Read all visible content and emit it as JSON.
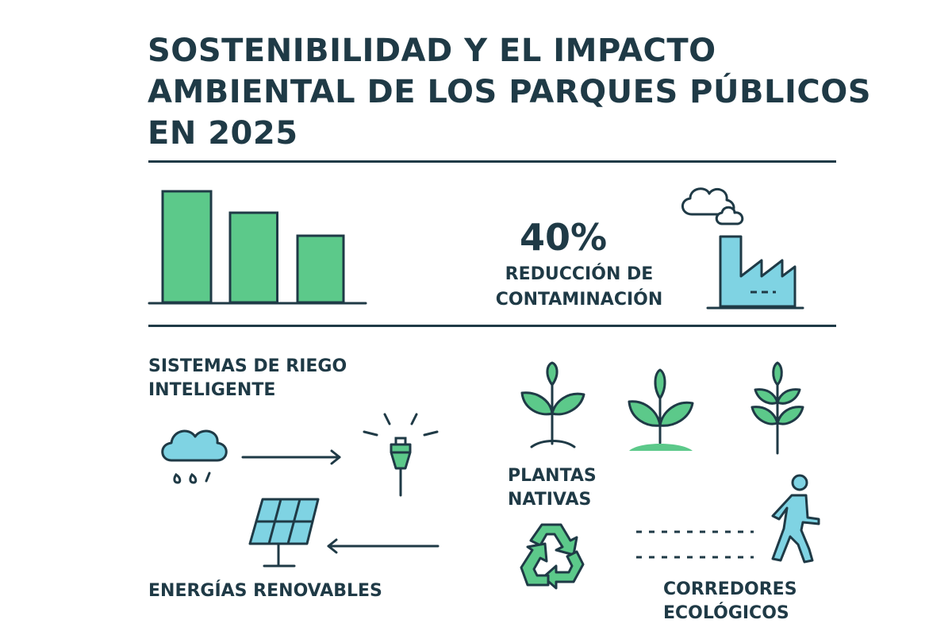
{
  "title": {
    "lines": [
      "SOSTENIBILIDAD Y EL IMPACTO",
      "AMBIENTAL DE LOS PARQUES PÚBLICOS",
      "EN 2025"
    ]
  },
  "colors": {
    "ink": "#1f3a46",
    "green": "#5cc98a",
    "blue": "#7fd3e3"
  },
  "chart_data": {
    "type": "bar",
    "categories": [
      "",
      "",
      ""
    ],
    "values": [
      140,
      113,
      84
    ],
    "ylim": [
      0,
      150
    ],
    "grid": false
  },
  "stat": {
    "value": "40%",
    "label_lines": [
      "REDUCCIÓN DE",
      "CONTAMINACIÓN"
    ],
    "icon": "factory-icon"
  },
  "irrigation": {
    "label_lines": [
      "SISTEMAS DE RIEGO",
      "INTELIGENTE"
    ],
    "icons": [
      "rain-cloud-icon",
      "arrow-right-icon",
      "sprinkler-icon"
    ]
  },
  "plants": {
    "label_lines": [
      "PLANTAS",
      "NATIVAS"
    ],
    "icons": [
      "sprout-icon",
      "seedling-icon",
      "fern-icon"
    ]
  },
  "energy": {
    "label": "ENERGÍAS RENOVABLES",
    "icons": [
      "solar-panel-icon",
      "arrow-left-icon"
    ]
  },
  "recycle": {
    "icon": "recycle-icon"
  },
  "corridors": {
    "label_lines": [
      "CORREDORES",
      "ECOLÓGICOS"
    ],
    "icons": [
      "walking-person-icon",
      "dashed-path-icon"
    ]
  }
}
